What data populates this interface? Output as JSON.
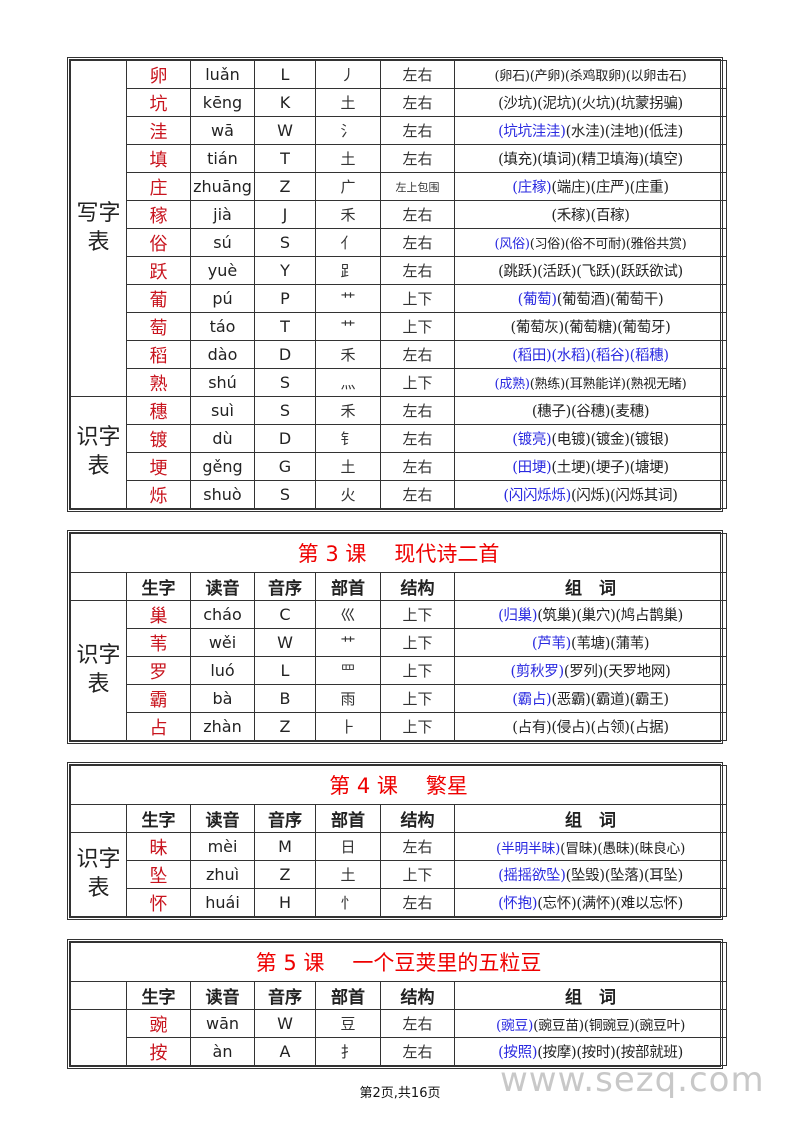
{
  "headers": [
    "生字",
    "读音",
    "音序",
    "部首",
    "结构",
    "组　词"
  ],
  "tables": [
    {
      "lesson": "",
      "name": "",
      "groups": [
        {
          "label": "写字表",
          "rows": [
            {
              "char": "卵",
              "pinyin": "luǎn",
              "order": "L",
              "radical": "丿",
              "structure": "左右",
              "words": [
                {
                  "t": "(卵石)(产卵)(杀鸡取卵)(以卵击石)",
                  "b": false
                }
              ]
            },
            {
              "char": "坑",
              "pinyin": "kēng",
              "order": "K",
              "radical": "土",
              "structure": "左右",
              "words": [
                {
                  "t": "(沙坑)(泥坑)(火坑)(坑蒙拐骗)",
                  "b": false
                }
              ]
            },
            {
              "char": "洼",
              "pinyin": "wā",
              "order": "W",
              "radical": "氵",
              "structure": "左右",
              "words": [
                {
                  "t": "(坑坑洼洼)",
                  "b": true
                },
                {
                  "t": "(水洼)(洼地)(低洼)",
                  "b": false
                }
              ]
            },
            {
              "char": "填",
              "pinyin": "tián",
              "order": "T",
              "radical": "土",
              "structure": "左右",
              "words": [
                {
                  "t": "(填充)(填词)(精卫填海)(填空)",
                  "b": false
                }
              ]
            },
            {
              "char": "庄",
              "pinyin": "zhuāng",
              "order": "Z",
              "radical": "广",
              "structure": "左上包围",
              "words": [
                {
                  "t": "(庄稼)",
                  "b": true
                },
                {
                  "t": "(端庄)(庄严)(庄重)",
                  "b": false
                }
              ]
            },
            {
              "char": "稼",
              "pinyin": "jià",
              "order": "J",
              "radical": "禾",
              "structure": "左右",
              "words": [
                {
                  "t": "(禾稼)(百稼)",
                  "b": false
                }
              ]
            },
            {
              "char": "俗",
              "pinyin": "sú",
              "order": "S",
              "radical": "亻",
              "structure": "左右",
              "words": [
                {
                  "t": "(风俗)",
                  "b": true
                },
                {
                  "t": "(习俗)(俗不可耐)(雅俗共赏)",
                  "b": false
                }
              ]
            },
            {
              "char": "跃",
              "pinyin": "yuè",
              "order": "Y",
              "radical": "⻊",
              "structure": "左右",
              "words": [
                {
                  "t": "(跳跃)(活跃)(飞跃)(跃跃欲试)",
                  "b": false
                }
              ]
            },
            {
              "char": "葡",
              "pinyin": "pú",
              "order": "P",
              "radical": "艹",
              "structure": "上下",
              "words": [
                {
                  "t": "(葡萄)",
                  "b": true
                },
                {
                  "t": "(葡萄酒)(葡萄干)",
                  "b": false
                }
              ]
            },
            {
              "char": "萄",
              "pinyin": "táo",
              "order": "T",
              "radical": "艹",
              "structure": "上下",
              "words": [
                {
                  "t": "(葡萄灰)(葡萄糖)(葡萄牙)",
                  "b": false
                }
              ]
            },
            {
              "char": "稻",
              "pinyin": "dào",
              "order": "D",
              "radical": "禾",
              "structure": "左右",
              "words": [
                {
                  "t": "(稻田)(水稻)(稻谷)(稻穗)",
                  "b": true
                }
              ]
            },
            {
              "char": "熟",
              "pinyin": "shú",
              "order": "S",
              "radical": "灬",
              "structure": "上下",
              "words": [
                {
                  "t": "(成熟)",
                  "b": true
                },
                {
                  "t": "(熟练)(耳熟能详)(熟视无睹)",
                  "b": false
                }
              ]
            }
          ]
        },
        {
          "label": "识字表",
          "rows": [
            {
              "char": "穗",
              "pinyin": "suì",
              "order": "S",
              "radical": "禾",
              "structure": "左右",
              "words": [
                {
                  "t": "(穗子)(谷穗)(麦穗)",
                  "b": false
                }
              ]
            },
            {
              "char": "镀",
              "pinyin": "dù",
              "order": "D",
              "radical": "钅",
              "structure": "左右",
              "words": [
                {
                  "t": "(镀亮)",
                  "b": true
                },
                {
                  "t": "(电镀)(镀金)(镀银)",
                  "b": false
                }
              ]
            },
            {
              "char": "埂",
              "pinyin": "gěng",
              "order": "G",
              "radical": "土",
              "structure": "左右",
              "words": [
                {
                  "t": "(田埂)",
                  "b": true
                },
                {
                  "t": "(土埂)(埂子)(塘埂)",
                  "b": false
                }
              ]
            },
            {
              "char": "烁",
              "pinyin": "shuò",
              "order": "S",
              "radical": "火",
              "structure": "左右",
              "words": [
                {
                  "t": "(闪闪烁烁)",
                  "b": true
                },
                {
                  "t": "(闪烁)(闪烁其词)",
                  "b": false
                }
              ]
            }
          ]
        }
      ]
    },
    {
      "lesson": "第 3 课",
      "name": "现代诗二首",
      "groups": [
        {
          "label": "识字表",
          "rows": [
            {
              "char": "巢",
              "pinyin": "cháo",
              "order": "C",
              "radical": "巛",
              "structure": "上下",
              "words": [
                {
                  "t": "(归巢)",
                  "b": true
                },
                {
                  "t": "(筑巢)(巢穴)(鸠占鹊巢)",
                  "b": false
                }
              ]
            },
            {
              "char": "苇",
              "pinyin": "wěi",
              "order": "W",
              "radical": "艹",
              "structure": "上下",
              "words": [
                {
                  "t": "(芦苇)",
                  "b": true
                },
                {
                  "t": "(苇塘)(蒲苇)",
                  "b": false
                }
              ]
            },
            {
              "char": "罗",
              "pinyin": "luó",
              "order": "L",
              "radical": "罒",
              "structure": "上下",
              "words": [
                {
                  "t": "(剪秋罗)",
                  "b": true
                },
                {
                  "t": "(罗列)(天罗地网)",
                  "b": false
                }
              ]
            },
            {
              "char": "霸",
              "pinyin": "bà",
              "order": "B",
              "radical": "雨",
              "structure": "上下",
              "words": [
                {
                  "t": "(霸占)",
                  "b": true
                },
                {
                  "t": "(恶霸)(霸道)(霸王)",
                  "b": false
                }
              ]
            },
            {
              "char": "占",
              "pinyin": "zhàn",
              "order": "Z",
              "radical": "⺊",
              "structure": "上下",
              "words": [
                {
                  "t": "(占有)(侵占)(占领)(占据)",
                  "b": false
                }
              ]
            }
          ]
        }
      ]
    },
    {
      "lesson": "第 4 课",
      "name": "繁星",
      "groups": [
        {
          "label": "识字表",
          "rows": [
            {
              "char": "昧",
              "pinyin": "mèi",
              "order": "M",
              "radical": "日",
              "structure": "左右",
              "words": [
                {
                  "t": "(半明半昧)",
                  "b": true
                },
                {
                  "t": "(冒昧)(愚昧)(昧良心)",
                  "b": false
                }
              ]
            },
            {
              "char": "坠",
              "pinyin": "zhuì",
              "order": "Z",
              "radical": "土",
              "structure": "上下",
              "words": [
                {
                  "t": "(摇摇欲坠)",
                  "b": true
                },
                {
                  "t": "(坠毁)(坠落)(耳坠)",
                  "b": false
                }
              ]
            },
            {
              "char": "怀",
              "pinyin": "huái",
              "order": "H",
              "radical": "忄",
              "structure": "左右",
              "words": [
                {
                  "t": "(怀抱)",
                  "b": true
                },
                {
                  "t": "(忘怀)(满怀)(难以忘怀)",
                  "b": false
                }
              ]
            }
          ]
        }
      ]
    },
    {
      "lesson": "第 5 课",
      "name": "一个豆荚里的五粒豆",
      "groups": [
        {
          "label": "",
          "rows": [
            {
              "char": "豌",
              "pinyin": "wān",
              "order": "W",
              "radical": "豆",
              "structure": "左右",
              "words": [
                {
                  "t": "(豌豆)",
                  "b": true
                },
                {
                  "t": "(豌豆苗)(铜豌豆)(豌豆叶)",
                  "b": false
                }
              ]
            },
            {
              "char": "按",
              "pinyin": "àn",
              "order": "A",
              "radical": "扌",
              "structure": "左右",
              "words": [
                {
                  "t": "(按照)",
                  "b": true
                },
                {
                  "t": "(按摩)(按时)(按部就班)",
                  "b": false
                }
              ]
            }
          ]
        }
      ]
    }
  ],
  "footer": "第2页,共16页",
  "watermark": "www.sezq.com",
  "colors": {
    "char": "#c8141e",
    "title": "#e00000",
    "highlight": "#2a2ae0"
  }
}
